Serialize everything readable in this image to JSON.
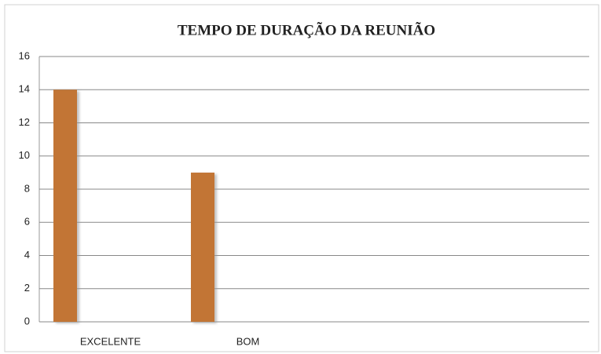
{
  "chart_data": {
    "type": "bar",
    "title": "TEMPO DE DURAÇÃO DA REUNIÃO",
    "categories": [
      "EXCELENTE",
      "BOM",
      null,
      null
    ],
    "values": [
      14,
      9,
      0,
      0
    ],
    "color": "#c27534",
    "ylim": [
      0,
      16
    ],
    "yticks": [
      0,
      2,
      4,
      6,
      8,
      10,
      12,
      14,
      16
    ],
    "grid": true
  }
}
